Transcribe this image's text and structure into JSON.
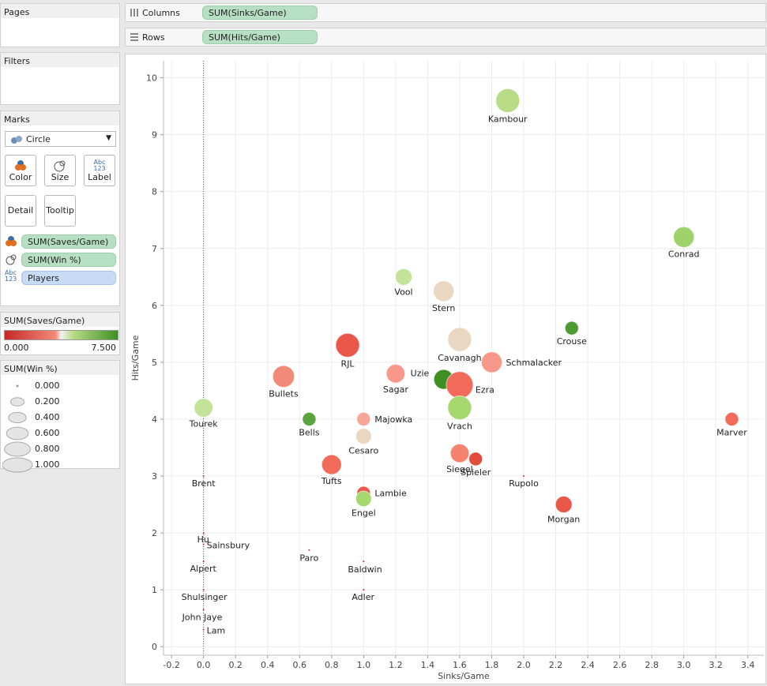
{
  "pages": {
    "title": "Pages"
  },
  "filters": {
    "title": "Filters"
  },
  "shelves": {
    "columns": {
      "label": "Columns",
      "pill": "SUM(Sinks/Game)"
    },
    "rows": {
      "label": "Rows",
      "pill": "SUM(Hits/Game)"
    }
  },
  "marks": {
    "title": "Marks",
    "mark_type": "Circle",
    "buttons": {
      "color": "Color",
      "size": "Size",
      "label": "Label",
      "detail": "Detail",
      "tooltip": "Tooltip"
    },
    "label_icon_text": "Abc\n123",
    "fields": [
      {
        "pill": "SUM(Saves/Game)",
        "icon": "color-icon",
        "kind": "green"
      },
      {
        "pill": "SUM(Win %)",
        "icon": "size-icon",
        "kind": "green"
      },
      {
        "pill": "Players",
        "icon": "label-icon",
        "kind": "blue"
      }
    ]
  },
  "color_legend": {
    "title": "SUM(Saves/Game)",
    "min_label": "0.000",
    "max_label": "7.500",
    "colors": [
      "#c62828",
      "#f28a78",
      "#f2f2f2",
      "#b7dc85",
      "#3f8f26"
    ]
  },
  "size_legend": {
    "title": "SUM(Win %)",
    "items": [
      "0.000",
      "0.200",
      "0.400",
      "0.600",
      "0.800",
      "1.000"
    ]
  },
  "chart_data": {
    "type": "scatter",
    "xlabel": "Sinks/Game",
    "ylabel": "Hits/Game",
    "xlim": [
      -0.25,
      3.5
    ],
    "ylim": [
      -0.15,
      10.3
    ],
    "xticks": [
      "-0.2",
      "0.0",
      "0.2",
      "0.4",
      "0.6",
      "0.8",
      "1.0",
      "1.2",
      "1.4",
      "1.6",
      "1.8",
      "2.0",
      "2.2",
      "2.4",
      "2.6",
      "2.8",
      "3.0",
      "3.2",
      "3.4"
    ],
    "yticks": [
      "0",
      "1",
      "2",
      "3",
      "4",
      "5",
      "6",
      "7",
      "8",
      "9",
      "10"
    ],
    "points": [
      {
        "name": "Kambour",
        "x": 1.9,
        "y": 9.6,
        "color": "#b7dc85",
        "size": 0.85
      },
      {
        "name": "Conrad",
        "x": 3.0,
        "y": 7.2,
        "color": "#9ed36a",
        "size": 0.7
      },
      {
        "name": "Vool",
        "x": 1.25,
        "y": 6.5,
        "color": "#c2e39a",
        "size": 0.5
      },
      {
        "name": "Stern",
        "x": 1.5,
        "y": 6.25,
        "color": "#ead7c2",
        "size": 0.7
      },
      {
        "name": "Crouse",
        "x": 2.3,
        "y": 5.6,
        "color": "#4e9a33",
        "size": 0.35
      },
      {
        "name": "Cavanagh",
        "x": 1.6,
        "y": 5.4,
        "color": "#ead7c2",
        "size": 0.85
      },
      {
        "name": "RJL",
        "x": 0.9,
        "y": 5.3,
        "color": "#e8574a",
        "size": 0.85
      },
      {
        "name": "Schmalacker",
        "x": 1.8,
        "y": 5.0,
        "color": "#f7988a",
        "size": 0.7
      },
      {
        "name": "Sagar",
        "x": 1.2,
        "y": 4.8,
        "color": "#f7988a",
        "size": 0.6
      },
      {
        "name": "Bullets",
        "x": 0.5,
        "y": 4.75,
        "color": "#f28a78",
        "size": 0.75
      },
      {
        "name": "Uzie",
        "x": 1.5,
        "y": 4.7,
        "color": "#3f8f26",
        "size": 0.65
      },
      {
        "name": "Ezra",
        "x": 1.6,
        "y": 4.6,
        "color": "#f26b5a",
        "size": 1.0
      },
      {
        "name": "Tourek",
        "x": 0.0,
        "y": 4.2,
        "color": "#c2e39a",
        "size": 0.6
      },
      {
        "name": "Vrach",
        "x": 1.6,
        "y": 4.2,
        "color": "#a6d86e",
        "size": 0.85
      },
      {
        "name": "Bells",
        "x": 0.66,
        "y": 4.0,
        "color": "#5aa33f",
        "size": 0.35
      },
      {
        "name": "Majowka",
        "x": 1.0,
        "y": 4.0,
        "color": "#f7a596",
        "size": 0.35
      },
      {
        "name": "Marver",
        "x": 3.3,
        "y": 4.0,
        "color": "#f26b5a",
        "size": 0.35
      },
      {
        "name": "Cesaro",
        "x": 1.0,
        "y": 3.7,
        "color": "#ead7c2",
        "size": 0.45
      },
      {
        "name": "Siegel",
        "x": 1.6,
        "y": 3.4,
        "color": "#f4826f",
        "size": 0.6
      },
      {
        "name": "Spieler",
        "x": 1.7,
        "y": 3.3,
        "color": "#e34b3c",
        "size": 0.35
      },
      {
        "name": "Tufts",
        "x": 0.8,
        "y": 3.2,
        "color": "#f26b5a",
        "size": 0.65
      },
      {
        "name": "Brent",
        "x": 0.0,
        "y": 3.0,
        "color": "#c62828",
        "size": 0.0
      },
      {
        "name": "Rupolo",
        "x": 2.0,
        "y": 3.0,
        "color": "#c62828",
        "size": 0.0
      },
      {
        "name": "Lambie",
        "x": 1.0,
        "y": 2.7,
        "color": "#e8574a",
        "size": 0.35
      },
      {
        "name": "Engel",
        "x": 1.0,
        "y": 2.6,
        "color": "#a6d86e",
        "size": 0.45
      },
      {
        "name": "Morgan",
        "x": 2.25,
        "y": 2.5,
        "color": "#e8574a",
        "size": 0.5
      },
      {
        "name": "Hu",
        "x": 0.0,
        "y": 2.0,
        "color": "#c62828",
        "size": 0.0
      },
      {
        "name": "Sainsbury",
        "x": 0.0,
        "y": 1.8,
        "color": "#c62828",
        "size": 0.0
      },
      {
        "name": "Paro",
        "x": 0.66,
        "y": 1.7,
        "color": "#c62828",
        "size": 0.0
      },
      {
        "name": "Alpert",
        "x": 0.0,
        "y": 1.5,
        "color": "#c62828",
        "size": 0.0
      },
      {
        "name": "Baldwin",
        "x": 1.0,
        "y": 1.5,
        "color": "#c62828",
        "size": 0.0
      },
      {
        "name": "Shulsinger",
        "x": 0.0,
        "y": 1.0,
        "color": "#c62828",
        "size": 0.0
      },
      {
        "name": "Adler",
        "x": 1.0,
        "y": 1.0,
        "color": "#c62828",
        "size": 0.0
      },
      {
        "name": "John Jaye",
        "x": 0.0,
        "y": 0.65,
        "color": "#c62828",
        "size": 0.0
      },
      {
        "name": "Lam",
        "x": 0.0,
        "y": 0.3,
        "color": "#c62828",
        "size": 0.0
      }
    ],
    "grid": true,
    "zero_line": "vertical dotted at x=0"
  }
}
